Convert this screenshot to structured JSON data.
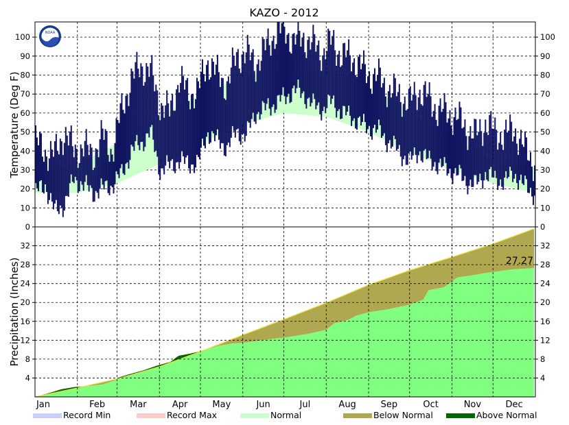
{
  "chart_data": [
    {
      "id": "temperature",
      "type": "bar",
      "title": "KAZO - 2012",
      "ylabel": "Temperature (Deg F)",
      "ylim": [
        0,
        108
      ],
      "yticks": [
        0,
        10,
        20,
        30,
        40,
        50,
        60,
        70,
        80,
        90,
        100
      ],
      "grid": true,
      "months": [
        "Jan",
        "Feb",
        "Mar",
        "Apr",
        "May",
        "Jun",
        "Jul",
        "Aug",
        "Sep",
        "Oct",
        "Nov",
        "Dec"
      ],
      "normal_band": {
        "name": "Normal",
        "day": [
          1,
          32,
          61,
          92,
          122,
          153,
          183,
          214,
          245,
          275,
          306,
          336,
          366
        ],
        "low": [
          18,
          18,
          23,
          33,
          44,
          54,
          60,
          58,
          50,
          39,
          30,
          23,
          18
        ],
        "high": [
          31,
          33,
          44,
          58,
          70,
          79,
          83,
          81,
          74,
          61,
          47,
          35,
          31
        ]
      },
      "daily_range": {
        "name": "Observed",
        "day": [
          1,
          8,
          15,
          22,
          29,
          36,
          43,
          50,
          57,
          64,
          71,
          78,
          85,
          92,
          99,
          106,
          113,
          120,
          127,
          134,
          141,
          148,
          155,
          162,
          169,
          176,
          183,
          190,
          197,
          204,
          211,
          218,
          225,
          232,
          239,
          246,
          253,
          260,
          267,
          274,
          281,
          288,
          295,
          302,
          309,
          316,
          323,
          330,
          337,
          344,
          351,
          358,
          365
        ],
        "low": [
          18,
          22,
          8,
          12,
          25,
          22,
          18,
          20,
          22,
          28,
          40,
          44,
          50,
          30,
          32,
          35,
          33,
          34,
          50,
          45,
          42,
          50,
          48,
          60,
          62,
          65,
          68,
          72,
          70,
          64,
          62,
          66,
          60,
          58,
          54,
          52,
          50,
          44,
          40,
          34,
          40,
          35,
          33,
          30,
          28,
          24,
          22,
          28,
          25,
          24,
          28,
          22,
          18
        ],
        "high": [
          45,
          40,
          38,
          50,
          40,
          42,
          38,
          48,
          40,
          62,
          78,
          85,
          82,
          65,
          60,
          78,
          70,
          72,
          88,
          80,
          75,
          90,
          92,
          86,
          94,
          102,
          104,
          98,
          100,
          96,
          92,
          98,
          90,
          90,
          84,
          80,
          78,
          72,
          70,
          65,
          72,
          68,
          62,
          60,
          58,
          52,
          48,
          55,
          50,
          48,
          52,
          42,
          35
        ],
        "color": "#0f1360"
      }
    },
    {
      "id": "precipitation",
      "type": "area",
      "ylabel": "Precipitation (Inches)",
      "ylim": [
        0,
        36
      ],
      "yticks": [
        4,
        8,
        12,
        16,
        20,
        24,
        28,
        32
      ],
      "grid": true,
      "months": [
        "Jan",
        "Feb",
        "Mar",
        "Apr",
        "May",
        "Jun",
        "Jul",
        "Aug",
        "Sep",
        "Oct",
        "Nov",
        "Dec"
      ],
      "normal_cumulative": {
        "day": [
          1,
          32,
          61,
          92,
          122,
          153,
          183,
          214,
          245,
          275,
          306,
          336,
          366
        ],
        "value": [
          0,
          1.9,
          3.8,
          6.4,
          9.6,
          13.1,
          16.4,
          19.9,
          23.7,
          26.8,
          29.6,
          32.4,
          35.6
        ]
      },
      "observed_cumulative": {
        "day": [
          1,
          10,
          20,
          30,
          40,
          50,
          60,
          63,
          70,
          80,
          90,
          100,
          106,
          115,
          124,
          135,
          145,
          155,
          165,
          175,
          182,
          200,
          214,
          220,
          230,
          236,
          245,
          260,
          275,
          285,
          289,
          300,
          310,
          320,
          330,
          340,
          350,
          366
        ],
        "value": [
          0,
          0.7,
          1.6,
          2.1,
          2.3,
          2.6,
          3.5,
          4.2,
          4.8,
          5.6,
          6.6,
          7.4,
          8.7,
          9.2,
          9.8,
          10.8,
          11.3,
          11.5,
          11.9,
          12.3,
          12.5,
          13.3,
          14.2,
          15.6,
          16.3,
          17.2,
          17.9,
          18.6,
          19.5,
          20.6,
          22.6,
          23.2,
          25.3,
          25.7,
          26.2,
          26.6,
          27.0,
          27.27
        ]
      },
      "annotation": "27.27"
    }
  ],
  "legend": [
    {
      "label": "Record Min",
      "color": "#c8d0ff"
    },
    {
      "label": "Record Max",
      "color": "#ffcccc"
    },
    {
      "label": "Normal",
      "color": "#ccffcc"
    },
    {
      "label": "Below Normal",
      "color": "#b0a850"
    },
    {
      "label": "Above Normal",
      "color": "#006400"
    }
  ],
  "colors": {
    "observed_temp": "#0f1360",
    "normal_temp": "#ccffcc",
    "precip_fill": "#80ff80",
    "below_normal": "#b0a850",
    "above_normal": "#006400",
    "normal_line": "#e8e030"
  },
  "logo": {
    "text": "NOAA"
  }
}
